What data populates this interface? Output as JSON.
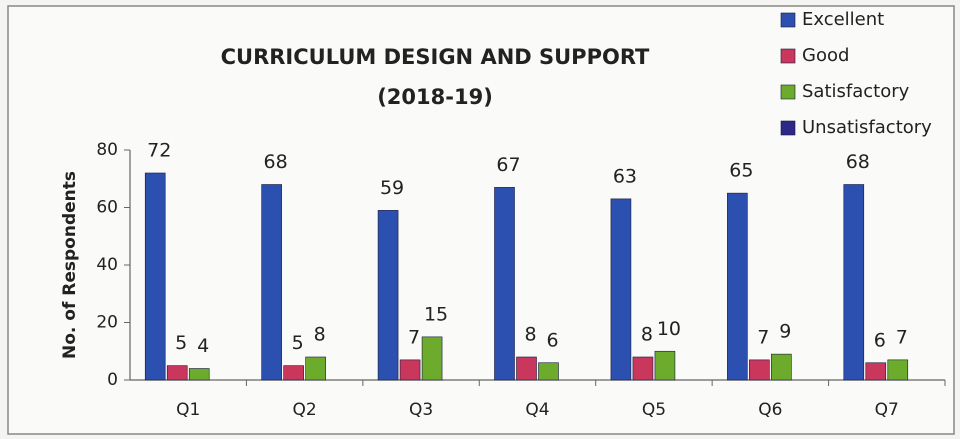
{
  "chart_data": {
    "type": "bar",
    "title": "CURRICULUM DESIGN AND SUPPORT",
    "subtitle": "(2018-19)",
    "y_label": "No. of Respondents",
    "categories": [
      "Q1",
      "Q2",
      "Q3",
      "Q4",
      "Q5",
      "Q6",
      "Q7"
    ],
    "series": [
      {
        "name": "Excellent",
        "color": "#2b50b0",
        "values": [
          72,
          68,
          59,
          67,
          63,
          65,
          68
        ]
      },
      {
        "name": "Good",
        "color": "#c9375c",
        "values": [
          5,
          5,
          7,
          8,
          8,
          7,
          6
        ]
      },
      {
        "name": "Satisfactory",
        "color": "#6cab2c",
        "values": [
          4,
          8,
          15,
          6,
          10,
          9,
          7
        ]
      },
      {
        "name": "Unsatisfactory",
        "color": "#2c2a86",
        "values": [
          0,
          0,
          0,
          0,
          0,
          0,
          0
        ]
      }
    ],
    "data_labels_series": [
      "Excellent",
      "Good",
      "Satisfactory"
    ],
    "ylim": [
      0,
      80
    ],
    "yticks": [
      0,
      20,
      40,
      60,
      80
    ],
    "grid": false,
    "legend": "top-right"
  }
}
